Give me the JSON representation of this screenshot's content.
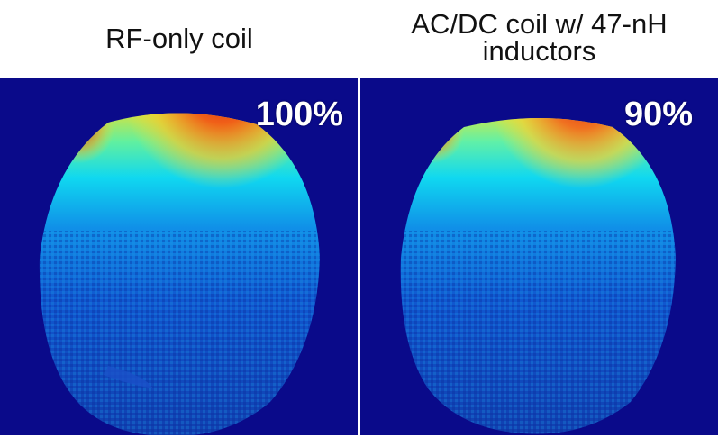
{
  "panels": {
    "left": {
      "title": "RF-only coil",
      "percentage": "100%"
    },
    "right": {
      "title_line1": "AC/DC coil w/ 47-nH",
      "title_line2": "inductors",
      "percentage": "90%"
    }
  },
  "colors": {
    "background": "#0a0a8a",
    "colormap": "jet"
  }
}
